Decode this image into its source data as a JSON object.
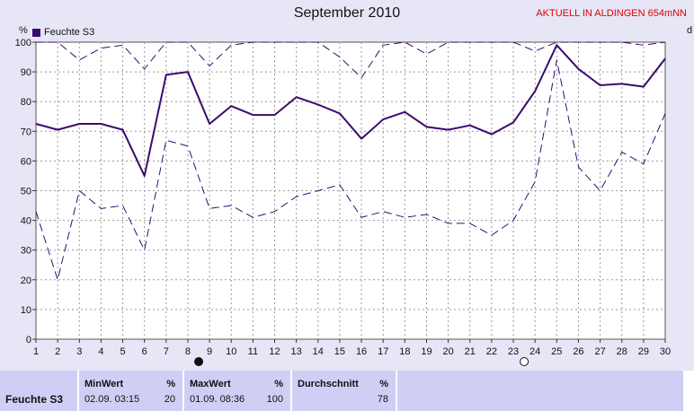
{
  "chart_data": {
    "type": "line",
    "title": "September 2010",
    "station_label": "AKTUELL IN ALDINGEN 654mNN",
    "ylabel": "%",
    "right_axis_label": "d",
    "ylim": [
      0,
      100
    ],
    "yticks": [
      0,
      10,
      20,
      30,
      40,
      50,
      60,
      70,
      80,
      90,
      100
    ],
    "xlim": [
      1,
      30
    ],
    "x": [
      1,
      2,
      3,
      4,
      5,
      6,
      7,
      8,
      9,
      10,
      11,
      12,
      13,
      14,
      15,
      16,
      17,
      18,
      19,
      20,
      21,
      22,
      23,
      24,
      25,
      26,
      27,
      28,
      29,
      30
    ],
    "grid": true,
    "legend_position": "top-left",
    "moon_phases": [
      {
        "day": 8.5,
        "phase": "new"
      },
      {
        "day": 23.5,
        "phase": "full"
      }
    ],
    "series": [
      {
        "name": "Feuchte S3",
        "role": "mean",
        "color": "#3b0a6e",
        "values": [
          72.5,
          70.5,
          72.5,
          72.5,
          70.5,
          55,
          89,
          90,
          72.5,
          78.5,
          75.5,
          75.5,
          81.5,
          79,
          76,
          67.5,
          74,
          76.5,
          71.5,
          70.5,
          72,
          69,
          73,
          83.5,
          99,
          91,
          85.5,
          86,
          85,
          94.5
        ]
      },
      {
        "role": "max",
        "color": "#3b0a6e",
        "values": [
          100,
          100,
          94,
          98,
          99,
          91,
          100,
          100,
          92,
          99,
          100,
          100,
          100,
          100,
          95,
          88,
          99,
          100,
          96,
          100,
          100,
          100,
          100,
          97,
          100,
          100,
          100,
          100,
          99,
          100
        ]
      },
      {
        "role": "min",
        "color": "#3b0a6e",
        "values": [
          43,
          20,
          50,
          44,
          45,
          30,
          67,
          65,
          44,
          45,
          41,
          43,
          48,
          50,
          52,
          41,
          43,
          41,
          42,
          39,
          39,
          35,
          40,
          53,
          94,
          58,
          50,
          63,
          59,
          76
        ]
      }
    ]
  },
  "stats": {
    "row_label": "Feuchte S3",
    "min": {
      "header": "MinWert",
      "unit": "%",
      "datetime": "02.09.  03:15",
      "value": "20"
    },
    "max": {
      "header": "MaxWert",
      "unit": "%",
      "datetime": "01.09.  08:36",
      "value": "100"
    },
    "avg": {
      "header": "Durchschnitt",
      "unit": "%",
      "value": "78"
    }
  }
}
